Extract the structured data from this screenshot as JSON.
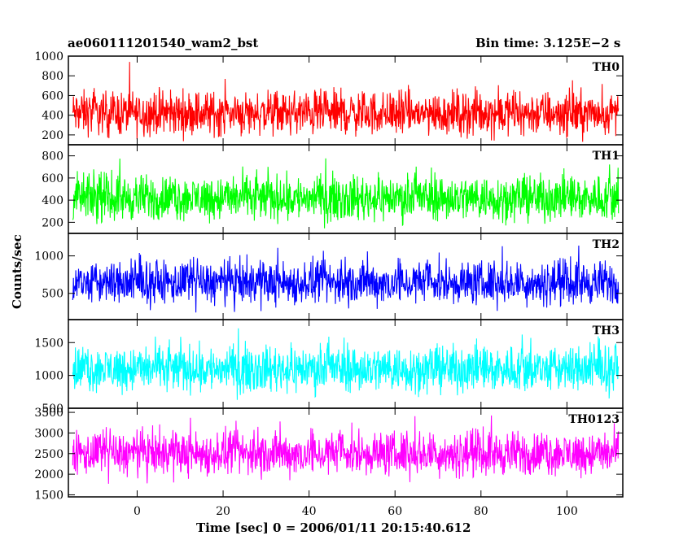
{
  "header": {
    "title": "ae060111201540_wam2_bst",
    "bin_time": "Bin time: 3.125E−2 s"
  },
  "axes": {
    "xlabel": "Time [sec] 0 = 2006/01/11 20:15:40.612",
    "ylabel": "Counts/sec"
  },
  "chart_data": {
    "type": "line",
    "x_range": [
      -16,
      113
    ],
    "x_ticks": [
      0,
      20,
      40,
      60,
      80,
      100
    ],
    "data_x_range": [
      -15,
      112
    ],
    "bin_time_s": 0.03125,
    "panels": [
      {
        "name": "TH0",
        "color": "#ff0000",
        "ylim": [
          100,
          1000
        ],
        "yticks": [
          200,
          400,
          600,
          800,
          1000
        ],
        "mean": 420,
        "spread": 330,
        "min": 130,
        "max": 1000
      },
      {
        "name": "TH1",
        "color": "#00ff00",
        "ylim": [
          100,
          900
        ],
        "yticks": [
          200,
          400,
          600,
          800
        ],
        "mean": 420,
        "spread": 300,
        "min": 100,
        "max": 900
      },
      {
        "name": "TH2",
        "color": "#0000ff",
        "ylim": [
          150,
          1300
        ],
        "yticks": [
          500,
          1000
        ],
        "mean": 640,
        "spread": 420,
        "min": 160,
        "max": 1300
      },
      {
        "name": "TH3",
        "color": "#00ffff",
        "ylim": [
          500,
          1850
        ],
        "yticks": [
          500,
          1000,
          1500
        ],
        "mean": 1100,
        "spread": 520,
        "min": 520,
        "max": 1850
      },
      {
        "name": "TH0123",
        "color": "#ff00ff",
        "ylim": [
          1450,
          3600
        ],
        "yticks": [
          1500,
          2000,
          2500,
          3000,
          3500
        ],
        "mean": 2500,
        "spread": 780,
        "min": 1450,
        "max": 3600
      }
    ]
  }
}
